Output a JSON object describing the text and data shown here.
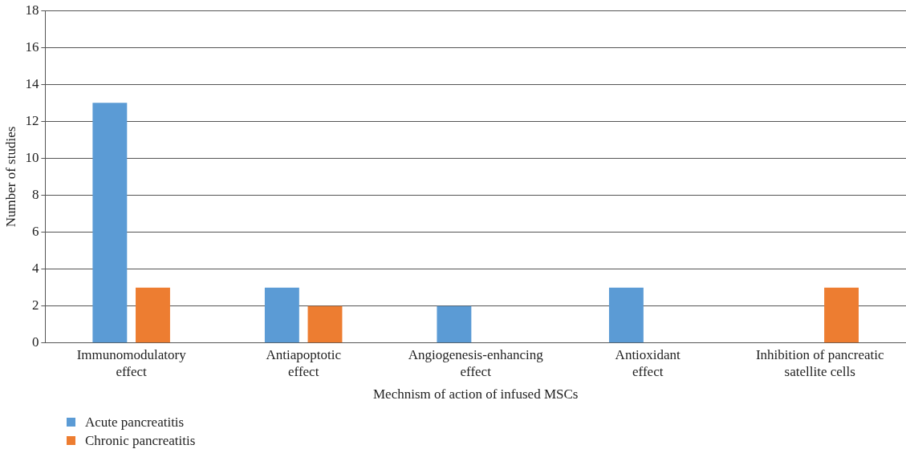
{
  "chart_data": {
    "type": "bar",
    "categories": [
      "Immunomodulatory\neffect",
      "Antiapoptotic\neffect",
      "Angiogenesis-enhancing\neffect",
      "Antioxidant\neffect",
      "Inhibition of pancreatic\nsatellite cells"
    ],
    "series": [
      {
        "name": "Acute pancreatitis",
        "color": "#5b9bd5",
        "values": [
          13,
          3,
          2,
          3,
          0
        ]
      },
      {
        "name": "Chronic pancreatitis",
        "color": "#ed7d31",
        "values": [
          3,
          2,
          0,
          0,
          3
        ]
      }
    ],
    "xlabel": "Mechnism of action of infused MSCs",
    "ylabel": "Number of studies",
    "ylim": [
      0,
      18
    ],
    "yticks": [
      0,
      2,
      4,
      6,
      8,
      10,
      12,
      14,
      16,
      18
    ],
    "grid": "y",
    "legend": "bottom left"
  }
}
